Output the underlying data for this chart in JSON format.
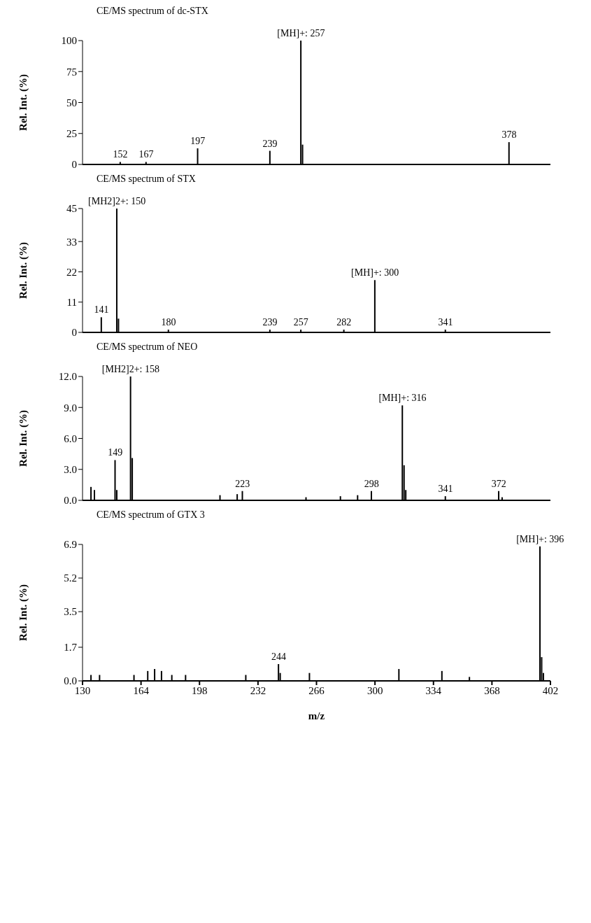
{
  "chart_data": [
    {
      "type": "bar",
      "title": "CE/MS spectrum of dc-STX",
      "ylabel": "Rel. Int. (%)",
      "color": "#000000",
      "xlim": [
        130,
        402
      ],
      "xticks": [
        130,
        164,
        198,
        232,
        266,
        300,
        334,
        368,
        402
      ],
      "ylim": [
        0,
        100
      ],
      "yticks": [
        0,
        25,
        50,
        75,
        100
      ],
      "tick_labels": "y",
      "x": [
        152,
        167,
        197,
        239,
        257,
        258,
        378
      ],
      "values": [
        2,
        2,
        13,
        11,
        100,
        16,
        18
      ],
      "annotations": [
        {
          "text": "152",
          "x": 152,
          "y": 2
        },
        {
          "text": "167",
          "x": 167,
          "y": 2
        },
        {
          "text": "197",
          "x": 197,
          "y": 13
        },
        {
          "text": "239",
          "x": 239,
          "y": 11
        },
        {
          "text": "[MH]+: 257",
          "x": 257,
          "y": 100
        },
        {
          "text": "378",
          "x": 378,
          "y": 18
        }
      ]
    },
    {
      "type": "bar",
      "title": "CE/MS spectrum of STX",
      "ylabel": "Rel. Int. (%)",
      "color": "#000000",
      "xlim": [
        130,
        402
      ],
      "xticks": [
        130,
        164,
        198,
        232,
        266,
        300,
        334,
        368,
        402
      ],
      "ylim": [
        0,
        45
      ],
      "yticks": [
        0,
        11,
        22,
        33,
        45
      ],
      "tick_labels": "y",
      "x": [
        141,
        150,
        151,
        180,
        239,
        257,
        282,
        300,
        341
      ],
      "values": [
        5.5,
        45,
        5,
        1,
        1,
        1,
        1,
        19,
        1
      ],
      "annotations": [
        {
          "text": "141",
          "x": 141,
          "y": 5.5
        },
        {
          "text": "[MH2]2+: 150",
          "x": 150,
          "y": 45
        },
        {
          "text": "180",
          "x": 180,
          "y": 1
        },
        {
          "text": "239",
          "x": 239,
          "y": 1
        },
        {
          "text": "257",
          "x": 257,
          "y": 1
        },
        {
          "text": "282",
          "x": 282,
          "y": 1
        },
        {
          "text": "[MH]+: 300",
          "x": 300,
          "y": 19
        },
        {
          "text": "341",
          "x": 341,
          "y": 1
        }
      ]
    },
    {
      "type": "bar",
      "title": "CE/MS spectrum of NEO",
      "ylabel": "Rel. Int. (%)",
      "color": "#000000",
      "xlim": [
        130,
        402
      ],
      "xticks": [
        130,
        164,
        198,
        232,
        266,
        300,
        334,
        368,
        402
      ],
      "ylim": [
        0,
        12
      ],
      "yticks": [
        {
          "value": 0,
          "label": "0.0"
        },
        {
          "value": 3,
          "label": "3.0"
        },
        {
          "value": 6,
          "label": "6.0"
        },
        {
          "value": 9,
          "label": "9.0"
        },
        {
          "value": 12,
          "label": "12.0"
        }
      ],
      "tick_labels": "y",
      "x": [
        135,
        137,
        149,
        150,
        158,
        159,
        210,
        220,
        223,
        260,
        280,
        290,
        298,
        316,
        317,
        318,
        341,
        372,
        374
      ],
      "values": [
        1.3,
        1,
        3.9,
        1,
        12,
        4.1,
        0.5,
        0.6,
        0.9,
        0.3,
        0.4,
        0.5,
        0.9,
        9.2,
        3.4,
        1,
        0.4,
        0.9,
        0.3
      ],
      "annotations": [
        {
          "text": "149",
          "x": 149,
          "y": 3.9
        },
        {
          "text": "[MH2]2+: 158",
          "x": 158,
          "y": 12
        },
        {
          "text": "223",
          "x": 223,
          "y": 0.9
        },
        {
          "text": "298",
          "x": 298,
          "y": 0.9
        },
        {
          "text": "[MH]+: 316",
          "x": 316,
          "y": 9.2
        },
        {
          "text": "341",
          "x": 341,
          "y": 0.4
        },
        {
          "text": "372",
          "x": 372,
          "y": 0.9
        }
      ]
    },
    {
      "type": "bar",
      "title": "CE/MS spectrum of GTX 3",
      "xlabel": "m/z",
      "ylabel": "Rel. Int. (%)",
      "color": "#000000",
      "xlim": [
        130,
        402
      ],
      "xticks": [
        130,
        164,
        198,
        232,
        266,
        300,
        334,
        368,
        402
      ],
      "ylim": [
        0,
        6.9
      ],
      "yticks": [
        {
          "value": 0,
          "label": "0.0"
        },
        {
          "value": 1.7,
          "label": "1.7"
        },
        {
          "value": 3.5,
          "label": "3.5"
        },
        {
          "value": 5.2,
          "label": "5.2"
        },
        {
          "value": 6.9,
          "label": "6.9"
        }
      ],
      "x": [
        135,
        140,
        160,
        168,
        172,
        176,
        182,
        190,
        225,
        244,
        245,
        262,
        314,
        339,
        355,
        396,
        397,
        398
      ],
      "values": [
        0.3,
        0.3,
        0.3,
        0.5,
        0.6,
        0.5,
        0.3,
        0.3,
        0.3,
        0.85,
        0.4,
        0.4,
        0.6,
        0.5,
        0.2,
        6.8,
        1.2,
        0.4
      ],
      "annotations": [
        {
          "text": "244",
          "x": 244,
          "y": 0.85
        },
        {
          "text": "[MH]+: 396",
          "x": 396,
          "y": 6.8
        }
      ]
    }
  ]
}
